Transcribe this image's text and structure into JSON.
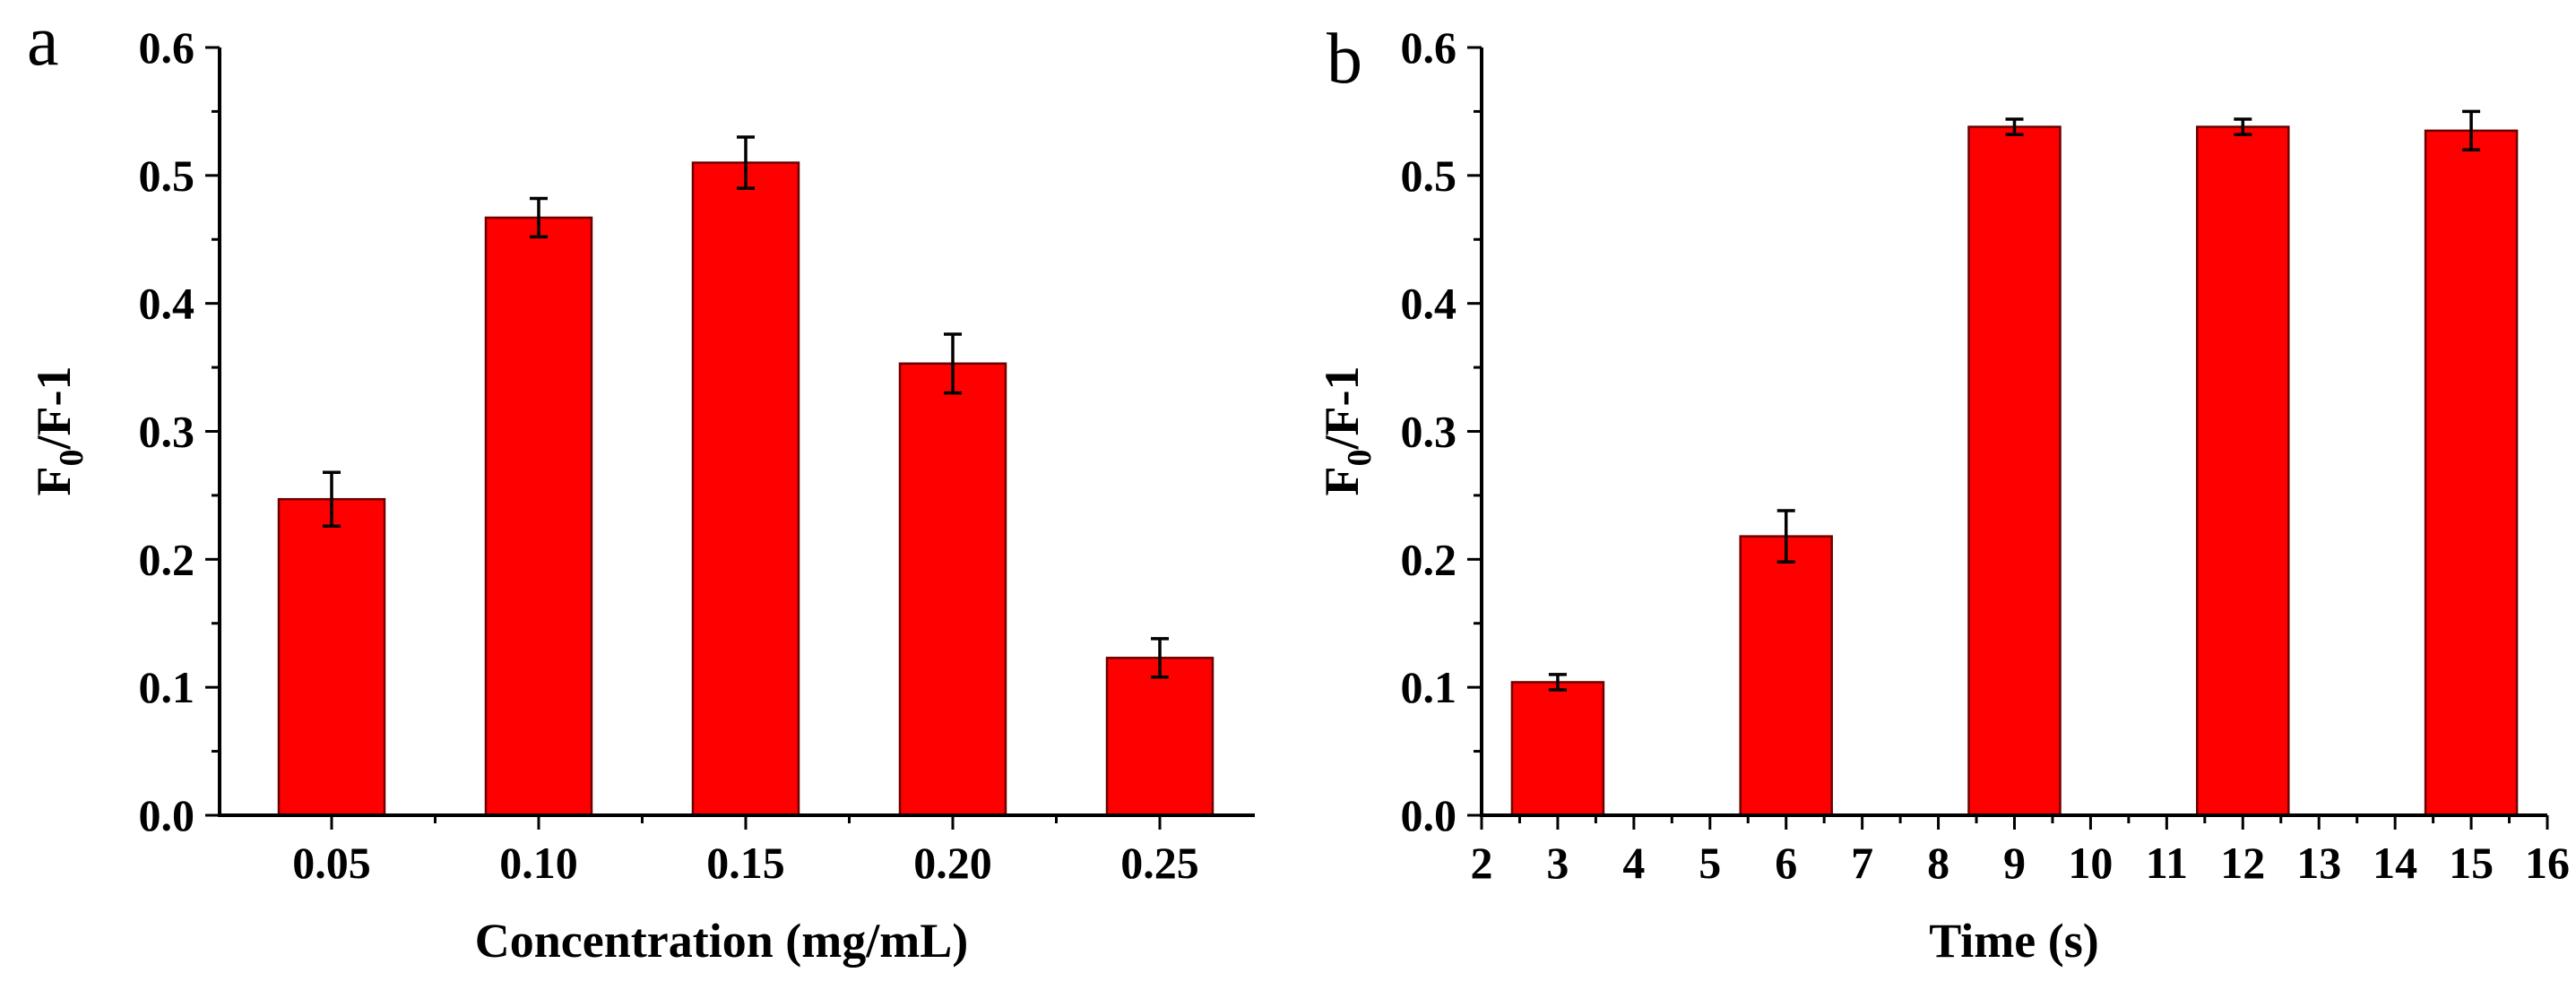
{
  "colors": {
    "bar": "#ff0000",
    "axis": "#000000",
    "background": "#ffffff"
  },
  "chart_data": [
    {
      "type": "bar",
      "panel_label": "a",
      "title": "",
      "xlabel": "Concentration (mg/mL)",
      "ylabel_main": "F",
      "ylabel_sub": "0",
      "ylabel_rest": "/F-1",
      "ylim": [
        0,
        0.6
      ],
      "yticks": [
        "0.0",
        "0.1",
        "0.2",
        "0.3",
        "0.4",
        "0.5",
        "0.6"
      ],
      "categories": [
        "0.05",
        "0.10",
        "0.15",
        "0.20",
        "0.25"
      ],
      "values": [
        0.247,
        0.467,
        0.51,
        0.353,
        0.123
      ],
      "errors": [
        0.021,
        0.015,
        0.02,
        0.023,
        0.015
      ],
      "grid": false
    },
    {
      "type": "bar",
      "panel_label": "b",
      "title": "",
      "xlabel": "Time (s)",
      "ylabel_main": "F",
      "ylabel_sub": "0",
      "ylabel_rest": "/F-1",
      "ylim": [
        0,
        0.6
      ],
      "xlim": [
        2,
        16
      ],
      "yticks": [
        "0.0",
        "0.1",
        "0.2",
        "0.3",
        "0.4",
        "0.5",
        "0.6"
      ],
      "xticks": [
        "2",
        "3",
        "4",
        "5",
        "6",
        "7",
        "8",
        "9",
        "10",
        "11",
        "12",
        "13",
        "14",
        "15",
        "16"
      ],
      "x": [
        3,
        6,
        9,
        12,
        15
      ],
      "values": [
        0.104,
        0.218,
        0.538,
        0.538,
        0.535
      ],
      "errors": [
        0.006,
        0.02,
        0.006,
        0.006,
        0.015
      ],
      "grid": false
    }
  ]
}
